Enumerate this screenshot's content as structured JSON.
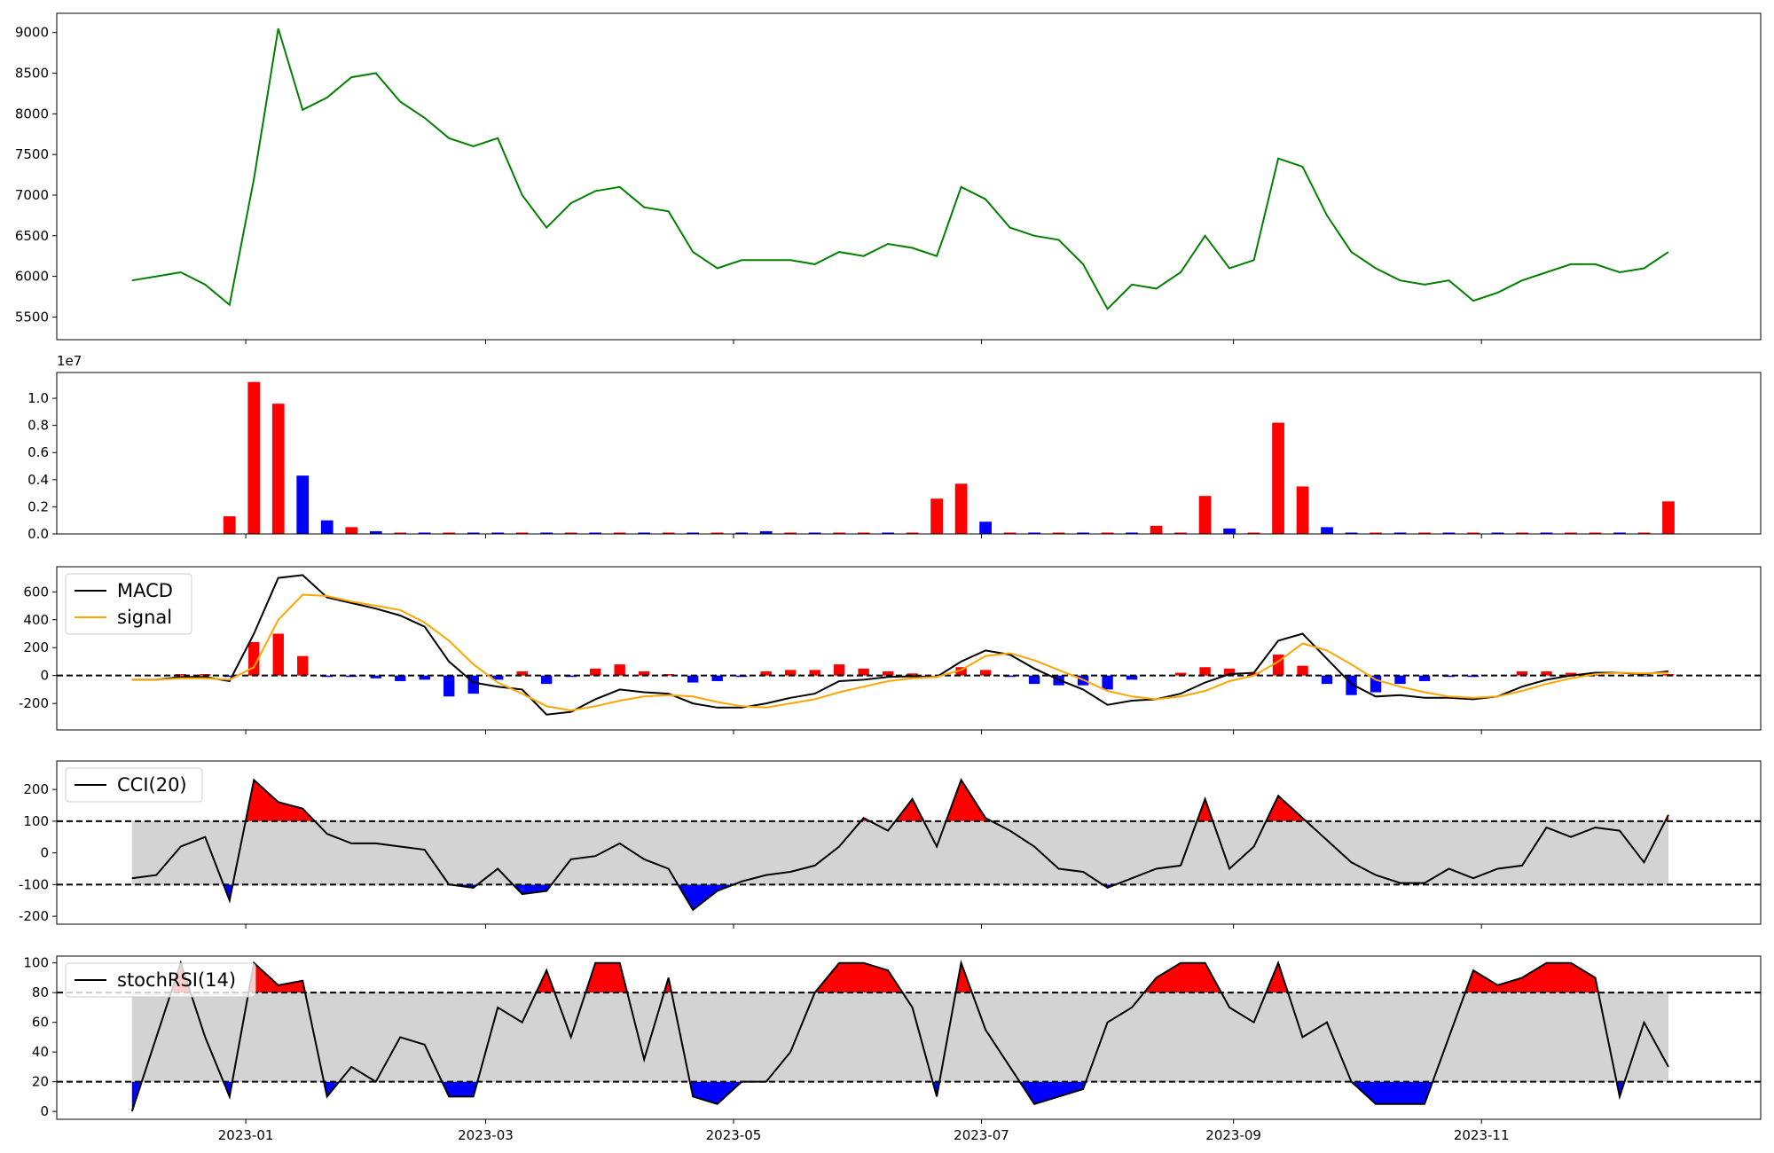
{
  "chart_data": {
    "type": "panels",
    "x": [
      -28,
      -22,
      -16,
      -10,
      -4,
      2,
      8,
      14,
      20,
      26,
      32,
      38,
      44,
      50,
      56,
      62,
      68,
      74,
      80,
      86,
      92,
      98,
      104,
      110,
      116,
      122,
      128,
      134,
      140,
      146,
      152,
      158,
      164,
      170,
      176,
      182,
      188,
      194,
      200,
      206,
      212,
      218,
      224,
      230,
      236,
      242,
      248,
      254,
      260,
      266,
      272,
      278,
      284,
      290,
      296,
      302,
      308,
      314,
      320,
      326,
      332,
      338,
      344,
      350
    ],
    "xlim": [
      -46.5,
      372.7
    ],
    "xticks": [
      {
        "value": 0,
        "label": "2023-01"
      },
      {
        "value": 59,
        "label": "2023-03"
      },
      {
        "value": 120,
        "label": "2023-05"
      },
      {
        "value": 181,
        "label": "2023-07"
      },
      {
        "value": 243,
        "label": "2023-09"
      },
      {
        "value": 304,
        "label": "2023-11"
      }
    ],
    "panels": [
      {
        "type": "line",
        "ylim": [
          5221,
          9237
        ],
        "yticks": [
          5500,
          6000,
          6500,
          7000,
          7500,
          8000,
          8500,
          9000
        ],
        "series": [
          {
            "color": "green",
            "values": [
              5950,
              6000,
              6050,
              5900,
              5650,
              7200,
              9050,
              8050,
              8200,
              8450,
              8500,
              8150,
              7950,
              7700,
              7600,
              7700,
              7000,
              6600,
              6900,
              7050,
              7100,
              6850,
              6800,
              6300,
              6100,
              6200,
              6200,
              6200,
              6150,
              6300,
              6250,
              6400,
              6350,
              6250,
              7100,
              6950,
              6600,
              6500,
              6450,
              6150,
              5600,
              5900,
              5850,
              6050,
              6500,
              6100,
              6200,
              7450,
              7350,
              6750,
              6300,
              6100,
              5950,
              5900,
              5950,
              5700,
              5800,
              5950,
              6050,
              6150,
              6150,
              6050,
              6100,
              6300
            ]
          }
        ]
      },
      {
        "type": "bar",
        "offset_label": "1e7",
        "ylim": [
          0,
          1.19
        ],
        "yticks": [
          {
            "value": 0,
            "label": "0.0"
          },
          0.2,
          0.4,
          0.6,
          0.8,
          {
            "value": 1,
            "label": "1.0"
          }
        ],
        "values": [
          0,
          0,
          0,
          0,
          0.13,
          1.12,
          0.96,
          0.43,
          0.1,
          0.05,
          0.02,
          0.01,
          0.01,
          0.01,
          0.01,
          0.01,
          0.01,
          0.01,
          0.01,
          0.01,
          0.01,
          0.01,
          0.01,
          0.01,
          0.01,
          0.01,
          0.02,
          0.01,
          0.01,
          0.01,
          0.01,
          0.01,
          0.01,
          0.26,
          0.37,
          0.09,
          0.01,
          0.01,
          0.01,
          0.01,
          0.01,
          0.01,
          0.06,
          0.01,
          0.28,
          0.04,
          0.01,
          0.82,
          0.35,
          0.05,
          0.01,
          0.01,
          0.01,
          0.01,
          0.01,
          0.01,
          0.01,
          0.01,
          0.01,
          0.01,
          0.01,
          0.01,
          0.01,
          0.24
        ],
        "colors": [
          "red",
          "red",
          "red",
          "red",
          "red",
          "red",
          "red",
          "blue",
          "blue",
          "red",
          "blue",
          "red",
          "blue",
          "red",
          "blue",
          "blue",
          "red",
          "blue",
          "red",
          "blue",
          "red",
          "blue",
          "red",
          "blue",
          "red",
          "blue",
          "blue",
          "red",
          "blue",
          "red",
          "red",
          "blue",
          "red",
          "red",
          "red",
          "blue",
          "red",
          "blue",
          "red",
          "blue",
          "red",
          "blue",
          "red",
          "red",
          "red",
          "blue",
          "red",
          "red",
          "red",
          "blue",
          "blue",
          "red",
          "blue",
          "red",
          "blue",
          "red",
          "blue",
          "red",
          "blue",
          "red",
          "red",
          "blue",
          "red",
          "red"
        ]
      },
      {
        "type": "macd",
        "ylim": [
          -390,
          780
        ],
        "yticks": [
          -200,
          0,
          200,
          400,
          600
        ],
        "hlines": [
          0
        ],
        "legend": "upper left",
        "pos_color": "red",
        "neg_color": "blue",
        "histogram": [
          0,
          0,
          10,
          10,
          -10,
          240,
          300,
          140,
          -10,
          -10,
          -20,
          -40,
          -30,
          -150,
          -130,
          -30,
          30,
          -60,
          -10,
          50,
          80,
          30,
          10,
          -50,
          -40,
          -10,
          30,
          40,
          40,
          80,
          50,
          30,
          15,
          0,
          60,
          40,
          -10,
          -60,
          -70,
          -70,
          -100,
          -30,
          0,
          20,
          60,
          50,
          20,
          150,
          70,
          -60,
          -140,
          -120,
          -60,
          -40,
          -10,
          -10,
          0,
          30,
          30,
          20,
          10,
          0,
          -5,
          10
        ],
        "series": [
          {
            "name": "MACD",
            "color": "black",
            "values": [
              -30,
              -30,
              -10,
              -10,
              -40,
              300,
              700,
              720,
              560,
              520,
              480,
              430,
              350,
              100,
              -50,
              -80,
              -100,
              -280,
              -260,
              -170,
              -100,
              -120,
              -130,
              -200,
              -230,
              -230,
              -200,
              -160,
              -130,
              -40,
              -30,
              -10,
              -5,
              -10,
              100,
              180,
              150,
              50,
              -30,
              -100,
              -210,
              -180,
              -170,
              -130,
              -50,
              10,
              20,
              250,
              300,
              120,
              -60,
              -150,
              -140,
              -160,
              -160,
              -170,
              -150,
              -80,
              -30,
              0,
              20,
              20,
              10,
              30
            ]
          },
          {
            "name": "signal",
            "color": "orange",
            "values": [
              -30,
              -30,
              -20,
              -20,
              -30,
              60,
              400,
              580,
              570,
              530,
              500,
              470,
              380,
              250,
              80,
              -50,
              -130,
              -220,
              -250,
              -220,
              -180,
              -150,
              -140,
              -150,
              -190,
              -220,
              -230,
              -200,
              -170,
              -120,
              -80,
              -40,
              -20,
              -10,
              40,
              140,
              160,
              110,
              40,
              -30,
              -110,
              -150,
              -170,
              -150,
              -110,
              -40,
              0,
              100,
              230,
              180,
              80,
              -30,
              -80,
              -120,
              -150,
              -160,
              -150,
              -110,
              -60,
              -20,
              10,
              20,
              15,
              20
            ]
          }
        ]
      },
      {
        "type": "band",
        "ylim": [
          -225,
          290
        ],
        "yticks": [
          -200,
          -100,
          0,
          100,
          200
        ],
        "hlines": [
          -100,
          100
        ],
        "legend": "upper left",
        "band_color": "lightgray",
        "upper_color": "red",
        "lower_color": "blue",
        "series": [
          {
            "name": "CCI(20)",
            "color": "black",
            "values": [
              -80,
              -70,
              20,
              50,
              -150,
              230,
              160,
              140,
              60,
              30,
              30,
              20,
              10,
              -100,
              -110,
              -50,
              -130,
              -120,
              -20,
              -10,
              30,
              -20,
              -50,
              -180,
              -120,
              -90,
              -70,
              -60,
              -40,
              20,
              110,
              70,
              170,
              20,
              230,
              110,
              70,
              20,
              -50,
              -60,
              -110,
              -80,
              -50,
              -40,
              170,
              -50,
              20,
              180,
              110,
              40,
              -30,
              -70,
              -95,
              -95,
              -50,
              -80,
              -50,
              -40,
              80,
              50,
              80,
              70,
              -30,
              120
            ]
          }
        ]
      },
      {
        "type": "band",
        "ylim": [
          -5.3,
          104.6
        ],
        "yticks": [
          0,
          20,
          40,
          60,
          80,
          100
        ],
        "hlines": [
          20,
          80
        ],
        "legend": "upper left",
        "band_color": "lightgray",
        "upper_color": "red",
        "lower_color": "blue",
        "series": [
          {
            "name": "stochRSI(14)",
            "color": "black",
            "values": [
              0,
              50,
              100,
              50,
              10,
              100,
              85,
              88,
              10,
              30,
              20,
              50,
              45,
              10,
              10,
              70,
              60,
              95,
              50,
              100,
              100,
              35,
              90,
              10,
              5,
              20,
              20,
              40,
              80,
              100,
              100,
              95,
              70,
              10,
              100,
              55,
              30,
              5,
              10,
              15,
              60,
              70,
              90,
              100,
              100,
              70,
              60,
              100,
              50,
              60,
              20,
              5,
              5,
              5,
              50,
              95,
              85,
              90,
              100,
              100,
              90,
              10,
              60,
              30
            ]
          }
        ]
      }
    ]
  }
}
